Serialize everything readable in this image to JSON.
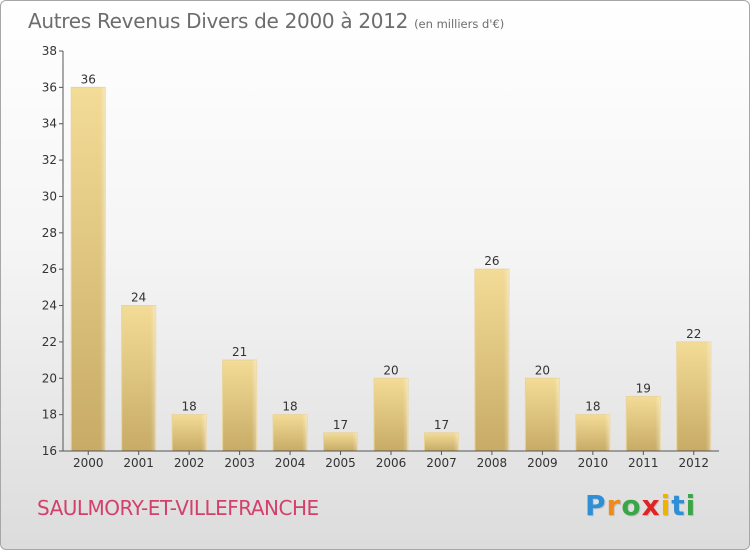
{
  "header": {
    "title": "Autres Revenus Divers de 2000 à 2012",
    "subtitle": "(en milliers d'€)"
  },
  "footer": {
    "commune": "SAULMORY-ET-VILLEFRANCHE",
    "brand_letters": [
      "P",
      "r",
      "o",
      "x",
      "i",
      "t",
      "i"
    ],
    "brand_colors": [
      "#2f8fd6",
      "#f08a1c",
      "#3aa648",
      "#e02424",
      "#f2b100",
      "#2f8fd6",
      "#3aa648"
    ]
  },
  "colors": {
    "bar_fill_light": "#f3dc97",
    "bar_fill_dark": "#c7ab66",
    "title": "#6d6d6d",
    "commune": "#d2406b"
  },
  "chart_data": {
    "type": "bar",
    "title": "Autres Revenus Divers de 2000 à 2012",
    "subtitle": "(en milliers d'€)",
    "xlabel": "",
    "ylabel": "",
    "categories": [
      "2000",
      "2001",
      "2002",
      "2003",
      "2004",
      "2005",
      "2006",
      "2007",
      "2008",
      "2009",
      "2010",
      "2011",
      "2012"
    ],
    "values": [
      36,
      24,
      18,
      21,
      18,
      17,
      20,
      17,
      26,
      20,
      18,
      19,
      22
    ],
    "ylim": [
      16,
      38
    ],
    "yticks": [
      16,
      18,
      20,
      22,
      24,
      26,
      28,
      30,
      32,
      34,
      36,
      38
    ],
    "grid": false,
    "data_labels": true
  }
}
